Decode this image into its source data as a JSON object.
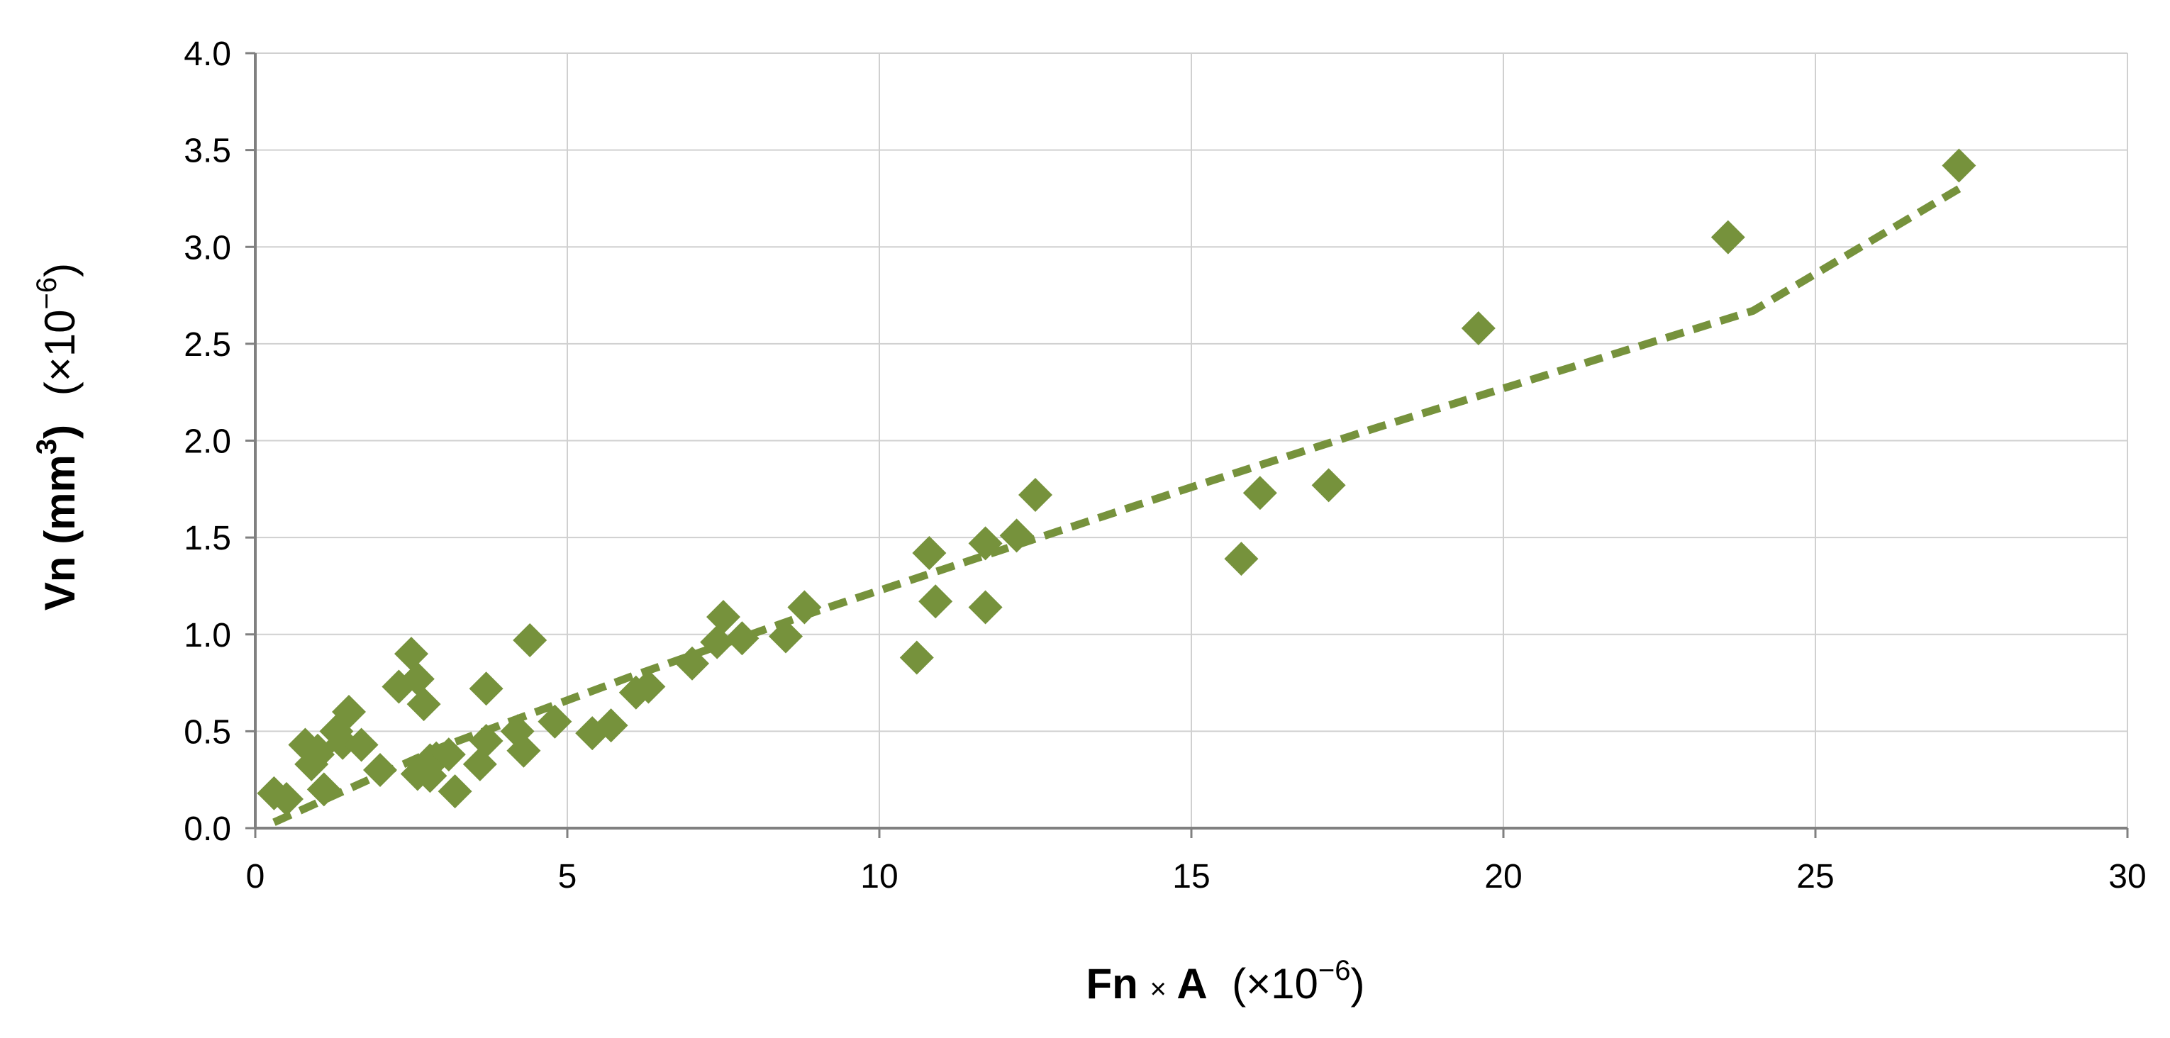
{
  "chart_data": {
    "type": "scatter",
    "xlabel": {
      "main": "Fn",
      "times": "×",
      "var": "A",
      "mult": "(×10",
      "exp": "−6",
      "close": ")"
    },
    "ylabel": {
      "main": "Vn (mm",
      "unit_exp": "3",
      "unit_close": ")",
      "mult": "(×10",
      "exp": "−6",
      "close": ")"
    },
    "xlim": [
      0,
      30
    ],
    "ylim": [
      0,
      4.0
    ],
    "xticks": [
      "0",
      "5",
      "10",
      "15",
      "20",
      "25",
      "30"
    ],
    "yticks": [
      "0.0",
      "0.5",
      "1.0",
      "1.5",
      "2.0",
      "2.5",
      "3.0",
      "3.5",
      "4.0"
    ],
    "grid": true,
    "marker": "diamond",
    "colors": {
      "points": "#76923c",
      "trendline": "#76923c",
      "grid": "#d0d0d0",
      "axis": "#808080"
    },
    "series": [
      {
        "x": [
          0.3,
          0.5,
          0.8,
          0.9,
          1.0,
          1.0,
          1.1,
          1.3,
          1.4,
          1.5,
          1.7,
          2.0,
          2.3,
          2.5,
          2.6,
          2.6,
          2.7,
          2.8,
          2.8,
          2.9,
          3.1,
          3.2,
          3.6,
          3.7,
          3.7,
          4.2,
          4.3,
          4.4,
          4.8,
          5.4,
          5.7,
          6.1,
          6.3,
          7.0,
          7.4,
          7.5,
          7.8,
          8.5,
          8.8,
          10.6,
          10.8,
          10.9,
          11.7,
          11.7,
          12.2,
          12.5,
          15.8,
          16.1,
          17.2,
          19.6,
          23.6,
          27.3
        ],
        "y": [
          0.18,
          0.15,
          0.43,
          0.33,
          0.38,
          0.4,
          0.2,
          0.5,
          0.44,
          0.6,
          0.43,
          0.3,
          0.73,
          0.9,
          0.28,
          0.77,
          0.64,
          0.27,
          0.35,
          0.36,
          0.38,
          0.19,
          0.33,
          0.45,
          0.72,
          0.5,
          0.4,
          0.97,
          0.55,
          0.49,
          0.53,
          0.7,
          0.73,
          0.85,
          0.96,
          1.09,
          0.98,
          0.99,
          1.14,
          0.88,
          1.42,
          1.17,
          1.14,
          1.47,
          1.51,
          1.72,
          1.39,
          1.73,
          1.77,
          2.58,
          3.05,
          3.42
        ]
      }
    ],
    "trendline": {
      "style": "dashed",
      "x": [
        0.3,
        3,
        6,
        9,
        12,
        15,
        18,
        21,
        24,
        27.3
      ],
      "y": [
        0.03,
        0.42,
        0.78,
        1.12,
        1.44,
        1.76,
        2.07,
        2.37,
        2.67,
        3.3
      ]
    }
  }
}
